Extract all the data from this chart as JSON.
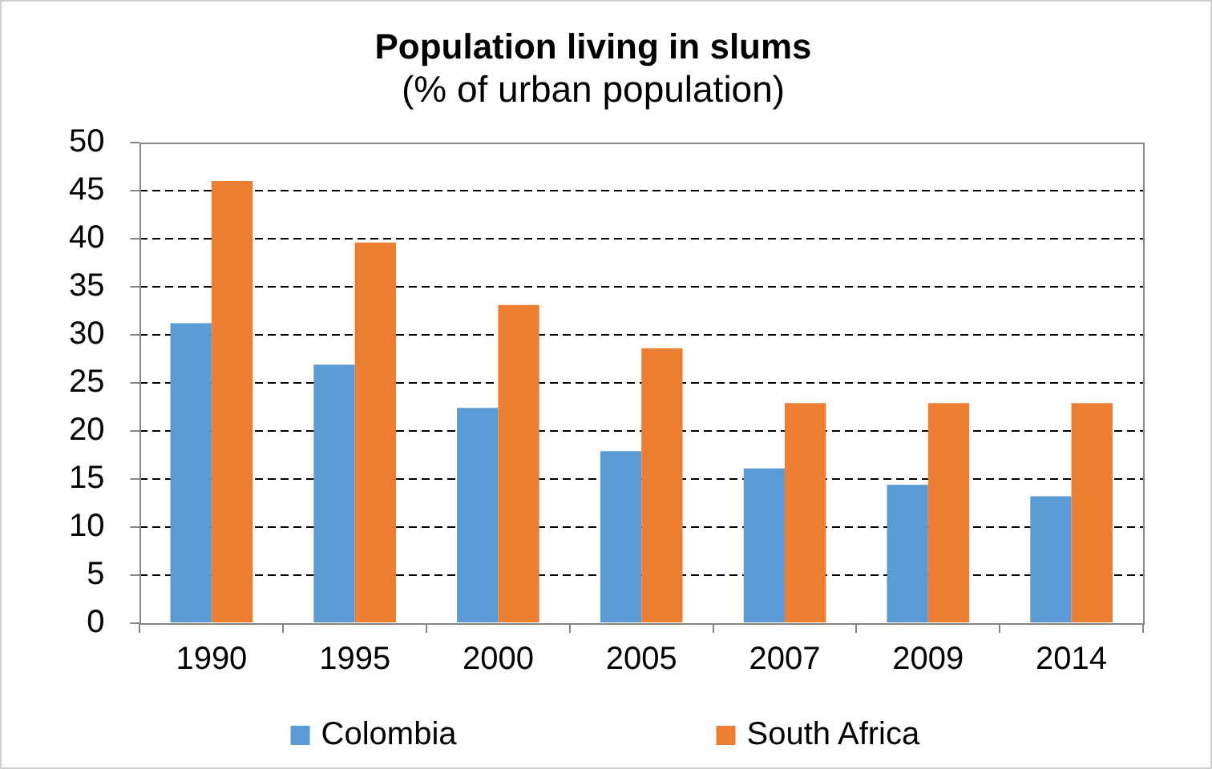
{
  "chart_data": {
    "type": "bar",
    "title": "Population living in slums",
    "subtitle": "(% of urban population)",
    "categories": [
      "1990",
      "1995",
      "2000",
      "2005",
      "2007",
      "2009",
      "2014"
    ],
    "series": [
      {
        "name": "Colombia",
        "color": "#5b9bd5",
        "values": [
          31.2,
          26.9,
          22.4,
          17.9,
          16.1,
          14.4,
          13.2
        ]
      },
      {
        "name": "South Africa",
        "color": "#ed7d31",
        "values": [
          46.0,
          39.6,
          33.1,
          28.6,
          22.9,
          22.9,
          22.9
        ]
      }
    ],
    "ylim": [
      0,
      50
    ],
    "yticks": [
      0,
      5,
      10,
      15,
      20,
      25,
      30,
      35,
      40,
      45,
      50
    ],
    "grid": "y",
    "legend": "bottom"
  }
}
